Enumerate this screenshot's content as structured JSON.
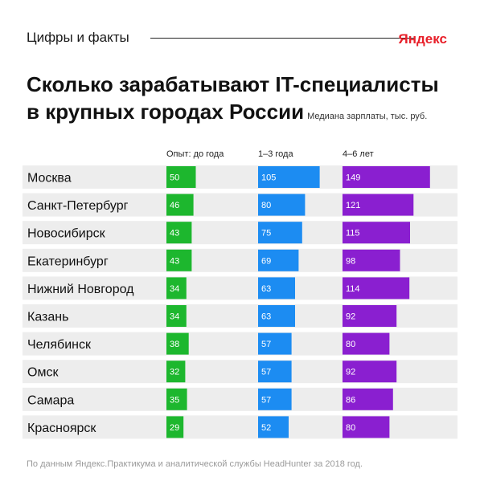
{
  "header": {
    "section_label": "Цифры и факты",
    "logo_text": "Яндекс",
    "logo_color": "#e8202a"
  },
  "title_line1": "Сколько зарабатывают IT-специалисты",
  "title_line2": "в крупных городах России",
  "footnote": "По данным Яндекс.Практикума и аналитической службы HeadHunter за 2018 год.",
  "chart_data": {
    "type": "bar",
    "orientation": "horizontal",
    "subtitle": "Медиана зарплаты, тыс. руб.",
    "categories": [
      "Москва",
      "Санкт-Петербург",
      "Новосибирск",
      "Екатеринбург",
      "Нижний Новгород",
      "Казань",
      "Челябинск",
      "Омск",
      "Самара",
      "Красноярск"
    ],
    "series": [
      {
        "name": "Опыт: до года",
        "color": "#1db72e",
        "values": [
          50,
          46,
          43,
          43,
          34,
          34,
          38,
          32,
          35,
          29
        ]
      },
      {
        "name": "1–3 года",
        "color": "#1c8cf2",
        "values": [
          105,
          80,
          75,
          69,
          63,
          63,
          57,
          57,
          57,
          52
        ]
      },
      {
        "name": "4–6 лет",
        "color": "#8a1fd0",
        "values": [
          149,
          121,
          115,
          98,
          114,
          92,
          80,
          92,
          86,
          80
        ]
      }
    ],
    "row_background": "#ededed",
    "grid": false,
    "legend": "top"
  }
}
